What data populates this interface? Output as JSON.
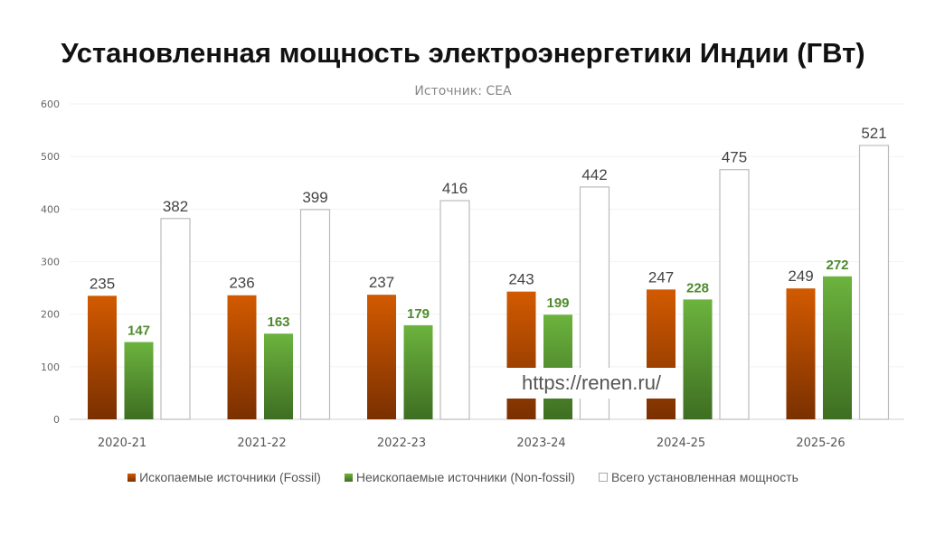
{
  "chart_data": {
    "type": "bar",
    "title": "Установленная мощность электроэнергетики Индии (ГВт)",
    "subtitle": "Источник: CEA",
    "categories": [
      "2020-21",
      "2021-22",
      "2022-23",
      "2023-24",
      "2024-25",
      "2025-26"
    ],
    "series": [
      {
        "name": "Ископаемые источники (Fossil)",
        "values": [
          235,
          236,
          237,
          243,
          247,
          249
        ],
        "color": "#c85000"
      },
      {
        "name": "Неископаемые источники (Non-fossil)",
        "values": [
          147,
          163,
          179,
          199,
          228,
          272
        ],
        "color": "#5e9e36"
      },
      {
        "name": "Всего установленная мощность",
        "values": [
          382,
          399,
          416,
          442,
          475,
          521
        ],
        "color": "#ffffff"
      }
    ],
    "ylim": [
      0,
      600
    ],
    "yticks": [
      0,
      100,
      200,
      300,
      400,
      500,
      600
    ],
    "grid": true,
    "legend": "bottom",
    "watermark": "https://renen.ru/"
  }
}
